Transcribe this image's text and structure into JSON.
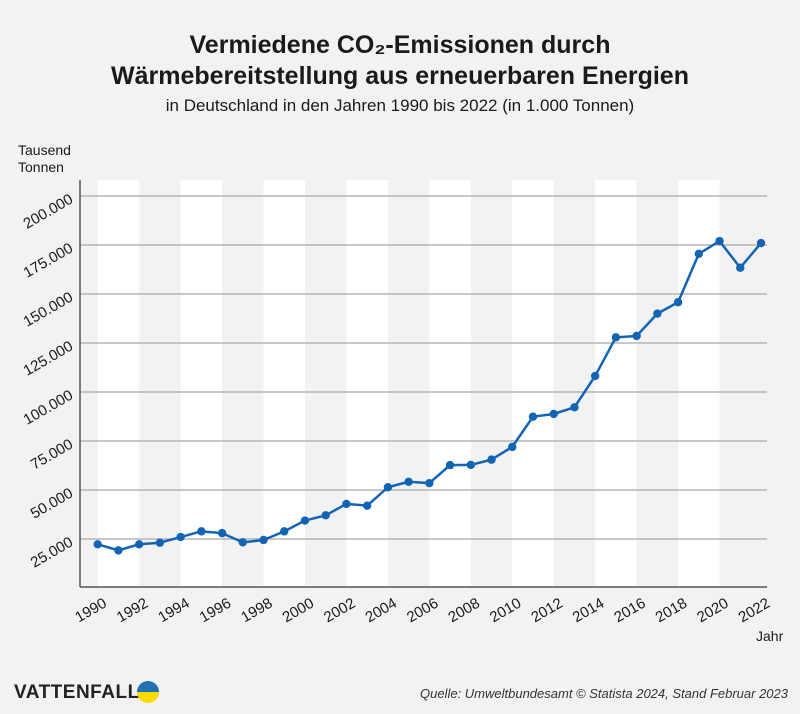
{
  "chart_data": {
    "type": "line",
    "title_line1": "Vermiedene CO₂-Emissionen durch",
    "title_line2": "Wärmebereitstellung aus erneuerbaren Energien",
    "subtitle": "in Deutschland in den Jahren 1990 bis 2022 (in 1.000 Tonnen)",
    "ylabel": "Tausend Tonnen",
    "xlabel": "Jahr",
    "ylim": [
      0,
      210000
    ],
    "yticks": [
      25000,
      50000,
      75000,
      100000,
      125000,
      150000,
      175000,
      200000
    ],
    "ytick_labels": [
      "25.000",
      "50.000",
      "75.000",
      "100.000",
      "125.000",
      "150.000",
      "175.000",
      "200.000"
    ],
    "xtick_labels": [
      "1990",
      "1992",
      "1994",
      "1996",
      "1998",
      "2000",
      "2002",
      "2004",
      "2006",
      "2008",
      "2010",
      "2012",
      "2014",
      "2016",
      "2018",
      "2020",
      "2022"
    ],
    "grid": true,
    "x": [
      1990,
      1991,
      1992,
      1993,
      1994,
      1995,
      1996,
      1997,
      1998,
      1999,
      2000,
      2001,
      2002,
      2003,
      2004,
      2005,
      2006,
      2007,
      2008,
      2009,
      2010,
      2011,
      2012,
      2013,
      2014,
      2015,
      2016,
      2017,
      2018,
      2019,
      2020,
      2021,
      2022
    ],
    "values": [
      22300,
      19200,
      22300,
      23100,
      26000,
      28900,
      28000,
      23300,
      24500,
      28900,
      34400,
      37100,
      42900,
      42000,
      51400,
      54200,
      53500,
      62700,
      62800,
      65500,
      72000,
      87400,
      88800,
      92200,
      108200,
      127900,
      128600,
      140000,
      145800,
      170500,
      177000,
      163400,
      176000
    ],
    "line_color": "#1464b4"
  },
  "footer": {
    "brand": "VATTENFALL",
    "source": "Quelle: Umweltbundesamt © Statista 2024, Stand Februar 2023"
  }
}
